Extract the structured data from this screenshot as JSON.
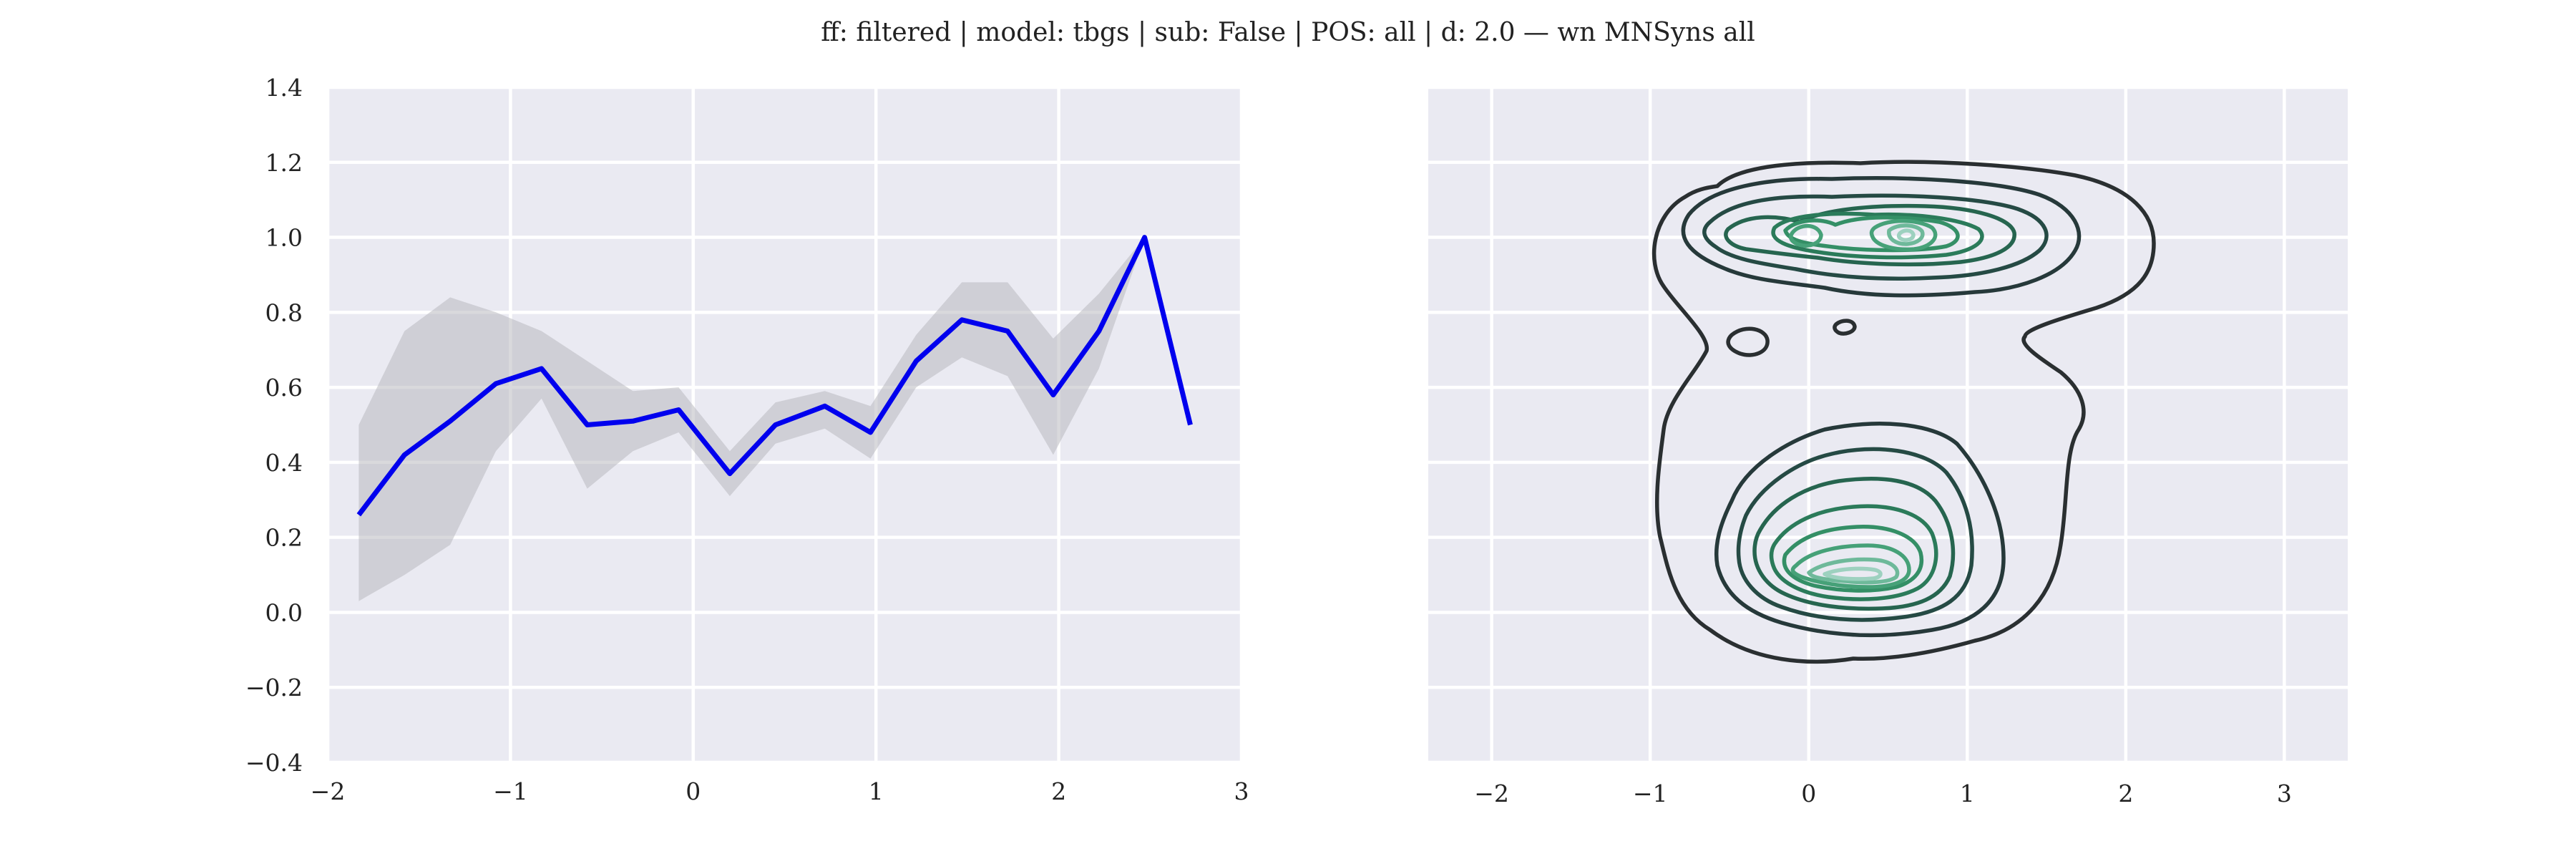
{
  "title": "ff: filtered | model: tbgs | sub: False | POS: all | d: 2.0 — wn MNSyns all",
  "colors": {
    "axes_bg": "#eaeaf2",
    "grid": "#ffffff",
    "line": "#0000ee",
    "band": "#b4b4b9",
    "contour_levels": [
      "#2a2f31",
      "#26393a",
      "#254a44",
      "#26654f",
      "#2b7b5a",
      "#348f66",
      "#46a178",
      "#6eb99a",
      "#9dd1bf"
    ]
  },
  "chart_data": [
    {
      "type": "line",
      "xlim": [
        -2,
        3
      ],
      "ylim": [
        -0.4,
        1.4
      ],
      "xticks": [
        "−2",
        "−1",
        "0",
        "1",
        "2",
        "3"
      ],
      "yticks": [
        "−0.4",
        "−0.2",
        "0.0",
        "0.2",
        "0.4",
        "0.6",
        "0.8",
        "1.0",
        "1.2",
        "1.4"
      ],
      "grid": true,
      "series": [
        {
          "x": [
            -1.83,
            -1.58,
            -1.33,
            -1.08,
            -0.83,
            -0.58,
            -0.33,
            -0.08,
            0.2,
            0.45,
            0.72,
            0.97,
            1.22,
            1.47,
            1.72,
            1.97,
            2.22,
            2.47,
            2.72
          ],
          "y": [
            0.26,
            0.42,
            0.51,
            0.61,
            0.65,
            0.5,
            0.51,
            0.54,
            0.37,
            0.5,
            0.55,
            0.48,
            0.67,
            0.78,
            0.75,
            0.58,
            0.75,
            1.0,
            0.5
          ],
          "lower": [
            0.03,
            0.1,
            0.18,
            0.43,
            0.57,
            0.33,
            0.43,
            0.48,
            0.31,
            0.45,
            0.49,
            0.41,
            0.6,
            0.68,
            0.63,
            0.42,
            0.65,
            1.0,
            0.5
          ],
          "upper": [
            0.5,
            0.75,
            0.84,
            0.8,
            0.75,
            0.67,
            0.59,
            0.6,
            0.43,
            0.56,
            0.59,
            0.55,
            0.74,
            0.88,
            0.88,
            0.73,
            0.85,
            1.0,
            0.5
          ]
        }
      ]
    },
    {
      "type": "contour",
      "xlim": [
        -2.4,
        3.4
      ],
      "ylim": [
        -0.4,
        1.4
      ],
      "xticks": [
        "−2",
        "−1",
        "0",
        "1",
        "2",
        "3"
      ],
      "grid": true,
      "levels": 9
    }
  ]
}
